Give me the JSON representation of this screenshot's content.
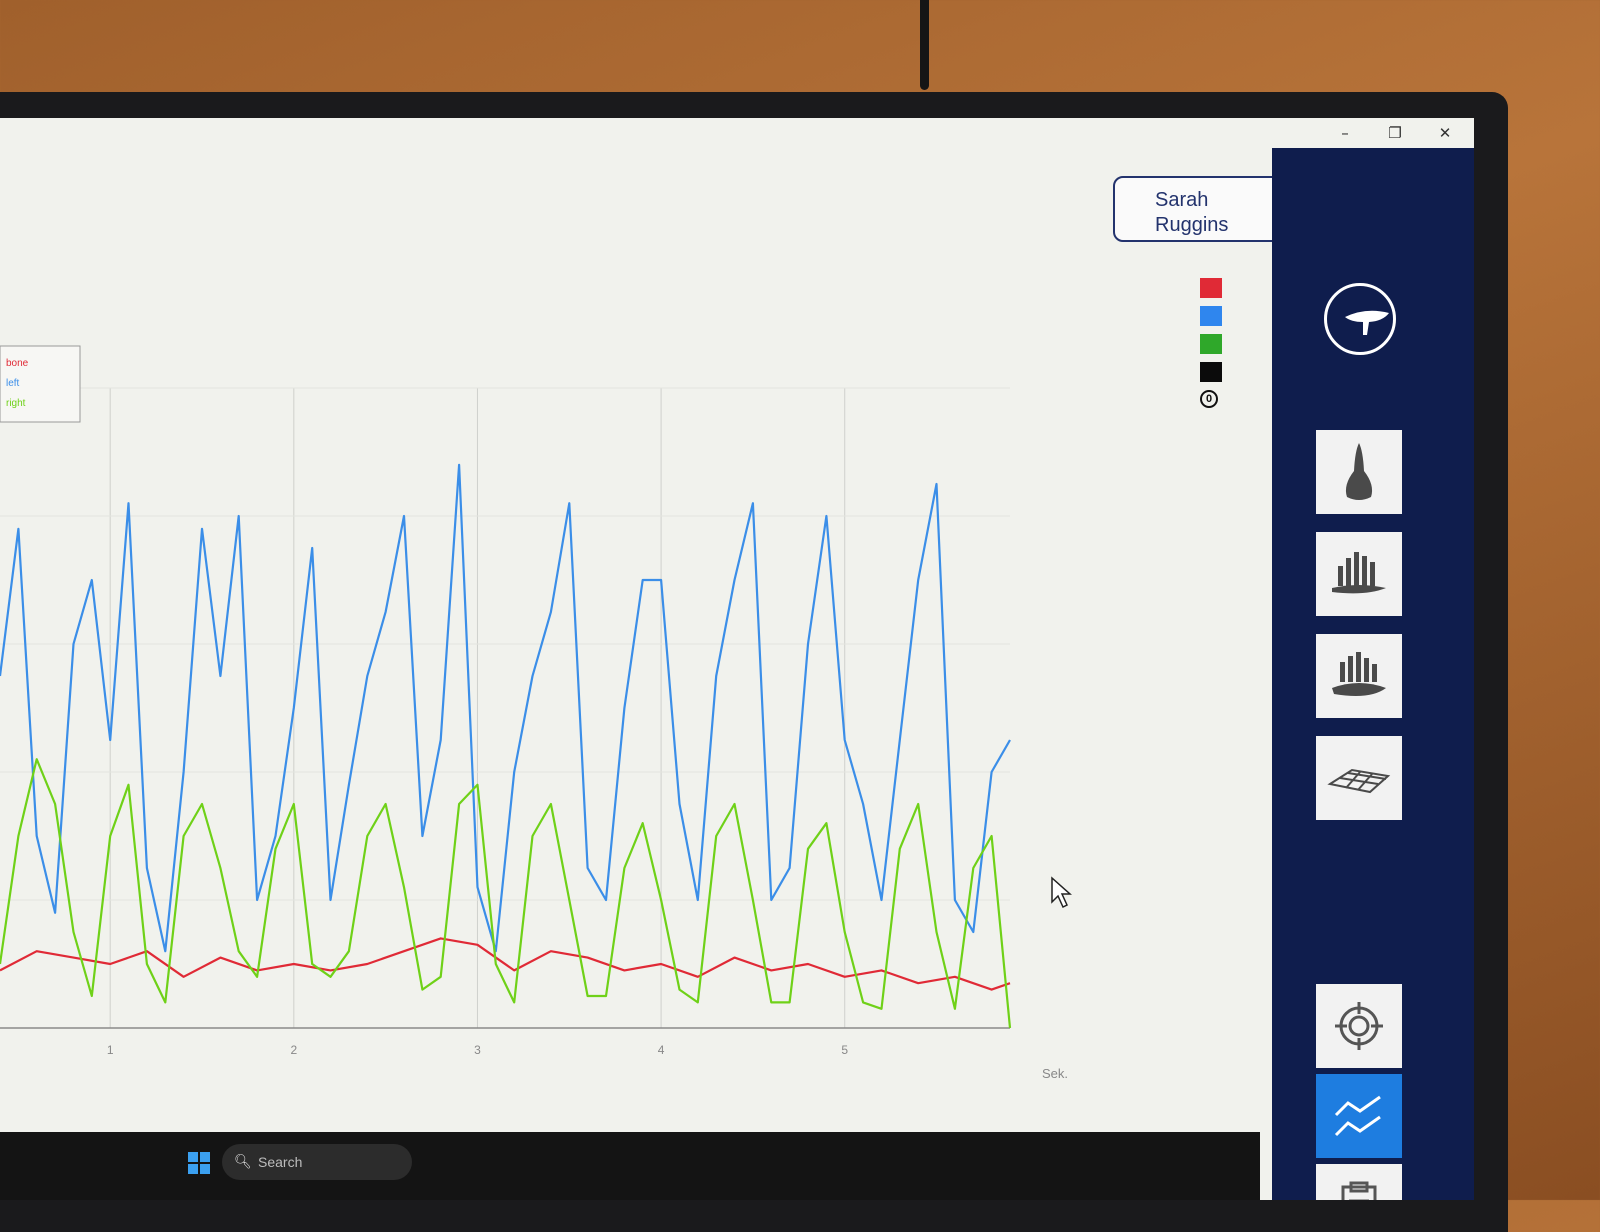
{
  "window": {
    "minimize_icon": "minimize-icon",
    "restore_icon": "restore-icon",
    "close_icon": "close-icon"
  },
  "user": {
    "first_name": "Sarah",
    "last_name": "Ruggins"
  },
  "legend": {
    "labels": [
      "bone",
      "left",
      "right"
    ],
    "swatch_colors": [
      "#e02a36",
      "#2f86ee",
      "#2fa82a",
      "#0b0b0b"
    ],
    "zero_label": "0"
  },
  "sidebar": {
    "items": [
      {
        "icon": "saddle-icon",
        "active": false
      },
      {
        "icon": "saddle-top-view-icon",
        "active": false
      },
      {
        "icon": "pressure-bars-icon",
        "active": false
      },
      {
        "icon": "pressure-distribution-icon",
        "active": false
      },
      {
        "icon": "3d-surface-icon",
        "active": false
      },
      {
        "icon": "target-icon",
        "active": false
      },
      {
        "icon": "line-chart-icon",
        "active": true
      },
      {
        "icon": "clipboard-icon",
        "active": false
      }
    ]
  },
  "taskbar": {
    "start_icon": "windows-start-icon",
    "search_placeholder": "Search"
  },
  "chart_data": {
    "type": "line",
    "xlabel": "Sek.",
    "ylabel": "",
    "xlim": [
      0.4,
      5.9
    ],
    "ylim": [
      0,
      100
    ],
    "x_ticks": [
      "1",
      "2",
      "3",
      "4",
      "5"
    ],
    "grid": true,
    "legend_position": "top-left",
    "series": [
      {
        "name": "bone",
        "color": "#e02a36",
        "x": [
          0.4,
          0.6,
          0.8,
          1.0,
          1.2,
          1.4,
          1.6,
          1.8,
          2.0,
          2.2,
          2.4,
          2.6,
          2.8,
          3.0,
          3.2,
          3.4,
          3.6,
          3.8,
          4.0,
          4.2,
          4.4,
          4.6,
          4.8,
          5.0,
          5.2,
          5.4,
          5.6,
          5.8,
          5.9
        ],
        "y": [
          9,
          12,
          11,
          10,
          12,
          8,
          11,
          9,
          10,
          9,
          10,
          12,
          14,
          13,
          9,
          12,
          11,
          9,
          10,
          8,
          11,
          9,
          10,
          8,
          9,
          7,
          8,
          6,
          7
        ]
      },
      {
        "name": "left",
        "color": "#3b8ee8",
        "x": [
          0.4,
          0.5,
          0.6,
          0.7,
          0.8,
          0.9,
          1.0,
          1.1,
          1.2,
          1.3,
          1.4,
          1.5,
          1.6,
          1.7,
          1.8,
          1.9,
          2.0,
          2.1,
          2.2,
          2.3,
          2.4,
          2.5,
          2.6,
          2.7,
          2.8,
          2.9,
          3.0,
          3.1,
          3.2,
          3.3,
          3.4,
          3.5,
          3.6,
          3.7,
          3.8,
          3.9,
          4.0,
          4.1,
          4.2,
          4.3,
          4.4,
          4.5,
          4.6,
          4.7,
          4.8,
          4.9,
          5.0,
          5.1,
          5.2,
          5.3,
          5.4,
          5.5,
          5.6,
          5.7,
          5.8,
          5.9
        ],
        "y": [
          55,
          78,
          30,
          18,
          60,
          70,
          45,
          82,
          25,
          12,
          40,
          78,
          55,
          80,
          20,
          30,
          50,
          75,
          20,
          38,
          55,
          65,
          80,
          30,
          45,
          88,
          22,
          12,
          40,
          55,
          65,
          82,
          25,
          20,
          50,
          70,
          70,
          35,
          20,
          55,
          70,
          82,
          20,
          25,
          60,
          80,
          45,
          35,
          20,
          45,
          70,
          85,
          20,
          15,
          40,
          45
        ]
      },
      {
        "name": "right",
        "color": "#6fd118",
        "x": [
          0.4,
          0.5,
          0.6,
          0.7,
          0.8,
          0.9,
          1.0,
          1.1,
          1.2,
          1.3,
          1.4,
          1.5,
          1.6,
          1.7,
          1.8,
          1.9,
          2.0,
          2.1,
          2.2,
          2.3,
          2.4,
          2.5,
          2.6,
          2.7,
          2.8,
          2.9,
          3.0,
          3.1,
          3.2,
          3.3,
          3.4,
          3.5,
          3.6,
          3.7,
          3.8,
          3.9,
          4.0,
          4.1,
          4.2,
          4.3,
          4.4,
          4.5,
          4.6,
          4.7,
          4.8,
          4.9,
          5.0,
          5.1,
          5.2,
          5.3,
          5.4,
          5.5,
          5.6,
          5.7,
          5.8,
          5.9
        ],
        "y": [
          10,
          30,
          42,
          35,
          15,
          5,
          30,
          38,
          10,
          4,
          30,
          35,
          25,
          12,
          8,
          28,
          35,
          10,
          8,
          12,
          30,
          35,
          22,
          6,
          8,
          35,
          38,
          10,
          4,
          30,
          35,
          20,
          5,
          5,
          25,
          32,
          20,
          6,
          4,
          30,
          35,
          20,
          4,
          4,
          28,
          32,
          15,
          4,
          3,
          28,
          35,
          15,
          3,
          25,
          30,
          0
        ]
      }
    ]
  }
}
